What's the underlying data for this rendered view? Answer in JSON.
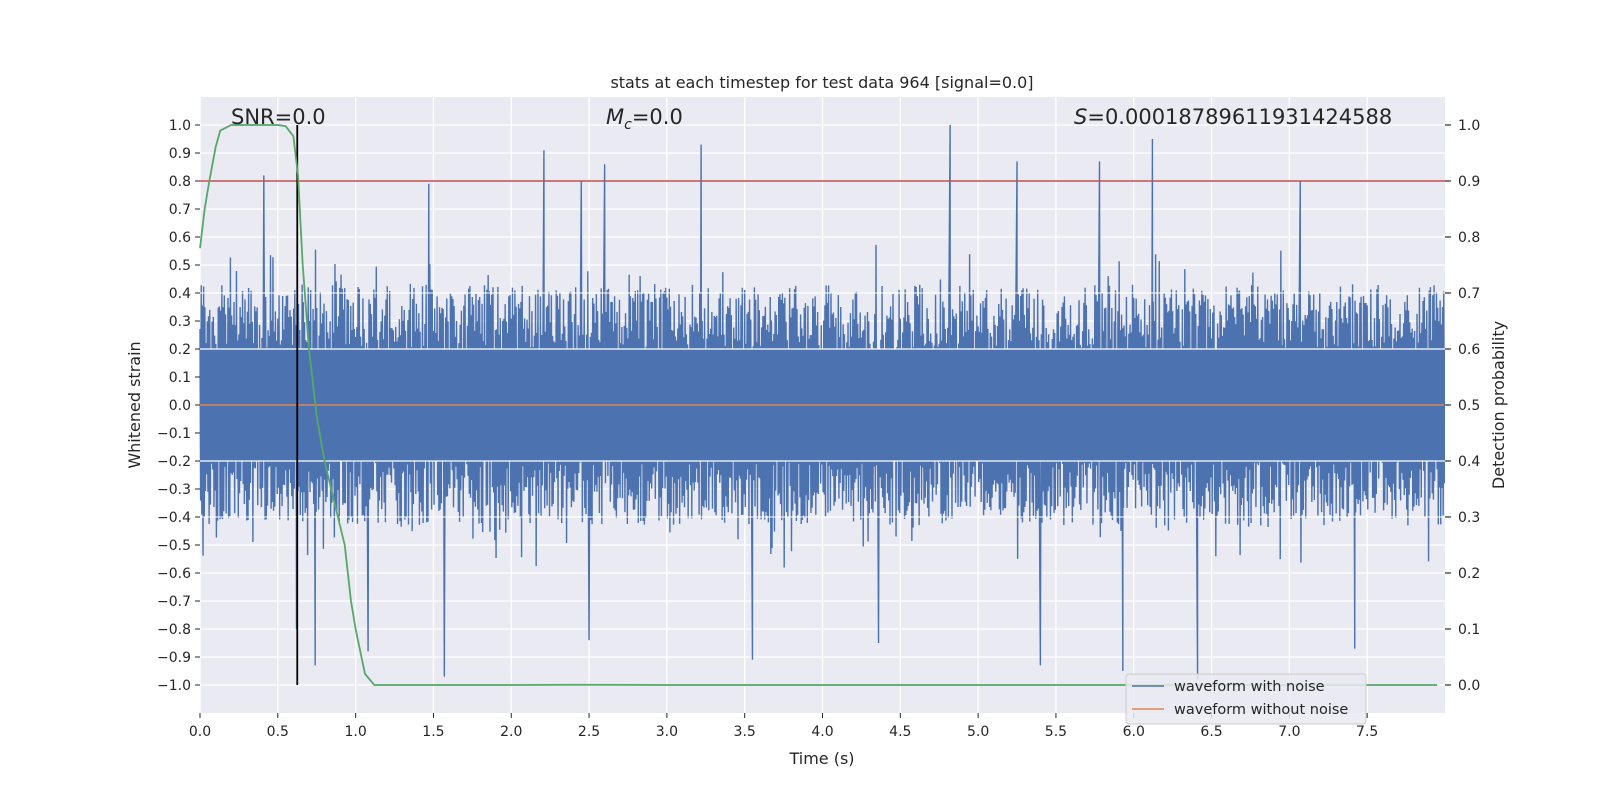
{
  "chart_data": {
    "type": "line",
    "title": "stats at each timestep for test data 964 [signal=0.0]",
    "xlabel": "Time (s)",
    "ylabel": "Whitened strain",
    "y2label": "Detection probability",
    "xlim": [
      0.0,
      8.0
    ],
    "ylim": [
      -1.1,
      1.1
    ],
    "y2lim": [
      -0.05,
      1.05
    ],
    "xticks": [
      "0.0",
      "0.5",
      "1.0",
      "1.5",
      "2.0",
      "2.5",
      "3.0",
      "3.5",
      "4.0",
      "4.5",
      "5.0",
      "5.5",
      "6.0",
      "6.5",
      "7.0",
      "7.5"
    ],
    "xtick_values": [
      0.0,
      0.5,
      1.0,
      1.5,
      2.0,
      2.5,
      3.0,
      3.5,
      4.0,
      4.5,
      5.0,
      5.5,
      6.0,
      6.5,
      7.0,
      7.5
    ],
    "yticks": [
      "1.0",
      "0.9",
      "0.8",
      "0.7",
      "0.6",
      "0.5",
      "0.4",
      "0.3",
      "0.2",
      "0.1",
      "0.0",
      "−0.1",
      "−0.2",
      "−0.3",
      "−0.4",
      "−0.5",
      "−0.6",
      "−0.7",
      "−0.8",
      "−0.9",
      "−1.0"
    ],
    "ytick_values": [
      1.0,
      0.9,
      0.8,
      0.7,
      0.6,
      0.5,
      0.4,
      0.3,
      0.2,
      0.1,
      0.0,
      -0.1,
      -0.2,
      -0.3,
      -0.4,
      -0.5,
      -0.6,
      -0.7,
      -0.8,
      -0.9,
      -1.0
    ],
    "y2ticks": [
      "1.0",
      "0.9",
      "0.8",
      "0.7",
      "0.6",
      "0.5",
      "0.4",
      "0.3",
      "0.2",
      "0.1",
      "0.0"
    ],
    "y2tick_values": [
      1.0,
      0.9,
      0.8,
      0.7,
      0.6,
      0.5,
      0.4,
      0.3,
      0.2,
      0.1,
      0.0
    ],
    "y2_gridlines": [
      0.7,
      0.6,
      0.4,
      0.3
    ],
    "annotations": {
      "snr": "SNR=0.0",
      "mc_symbol": "M",
      "mc_sub": "c",
      "mc_value": "=0.0",
      "s_symbol": "S",
      "s_value": "=0.00018789611931424588"
    },
    "series": [
      {
        "name": "waveform with noise",
        "color": "#4c72b0",
        "style": "dense noise, typical envelope about ±0.4 to ±0.6",
        "sample_count": 2048,
        "seed": 964,
        "peak_spikes": [
          {
            "x": 0.41,
            "y": 0.82
          },
          {
            "x": 1.47,
            "y": 0.79
          },
          {
            "x": 2.21,
            "y": 0.91
          },
          {
            "x": 2.45,
            "y": 0.8
          },
          {
            "x": 2.6,
            "y": 0.86
          },
          {
            "x": 3.22,
            "y": 0.93
          },
          {
            "x": 4.82,
            "y": 1.0
          },
          {
            "x": 5.25,
            "y": 0.87
          },
          {
            "x": 5.78,
            "y": 0.87
          },
          {
            "x": 6.12,
            "y": 0.95
          },
          {
            "x": 7.07,
            "y": 0.8
          },
          {
            "x": 0.62,
            "y": -0.8
          },
          {
            "x": 0.74,
            "y": -0.93
          },
          {
            "x": 1.08,
            "y": -0.88
          },
          {
            "x": 1.57,
            "y": -0.97
          },
          {
            "x": 2.5,
            "y": -0.84
          },
          {
            "x": 3.55,
            "y": -0.91
          },
          {
            "x": 4.36,
            "y": -0.85
          },
          {
            "x": 5.4,
            "y": -0.93
          },
          {
            "x": 5.93,
            "y": -0.95
          },
          {
            "x": 6.41,
            "y": -0.98
          },
          {
            "x": 7.42,
            "y": -0.87
          }
        ]
      },
      {
        "name": "waveform without noise",
        "color": "#dd8452",
        "x": [
          0.0,
          8.0
        ],
        "y": [
          0.0,
          0.0
        ]
      },
      {
        "name": "detection probability",
        "axis": "right",
        "color": "#55a868",
        "x": [
          0.0,
          0.03,
          0.06,
          0.1,
          0.13,
          0.2,
          0.3,
          0.4,
          0.5,
          0.55,
          0.6,
          0.63,
          0.66,
          0.7,
          0.75,
          0.8,
          0.86,
          0.93,
          0.97,
          1.0,
          1.06,
          1.12,
          1.2,
          1.5,
          2.0,
          2.4,
          3.0,
          4.0,
          5.0,
          6.0,
          7.0,
          7.95
        ],
        "y": [
          0.78,
          0.85,
          0.9,
          0.96,
          0.99,
          1.0,
          1.0,
          1.0,
          1.0,
          0.998,
          0.98,
          0.91,
          0.75,
          0.6,
          0.48,
          0.4,
          0.33,
          0.25,
          0.15,
          0.1,
          0.02,
          0.0,
          0.0,
          0.0,
          0.0,
          0.0005,
          0.0,
          0.0,
          0.0,
          0.0,
          0.0,
          0.0
        ]
      }
    ],
    "hlines": [
      {
        "name": "detection threshold",
        "axis": "right",
        "y": 0.9,
        "color": "#c44e52"
      }
    ],
    "vlines": [
      {
        "name": "detection time",
        "x": 0.625,
        "ymin": -1.0,
        "ymax": 1.0,
        "color": "#000000"
      }
    ],
    "legend": {
      "position": "lower-right",
      "entries": [
        {
          "label": "waveform with noise",
          "color": "#4c72b0"
        },
        {
          "label": "waveform without noise",
          "color": "#dd8452"
        }
      ]
    },
    "background": "#eaeaf2",
    "grid": true
  }
}
